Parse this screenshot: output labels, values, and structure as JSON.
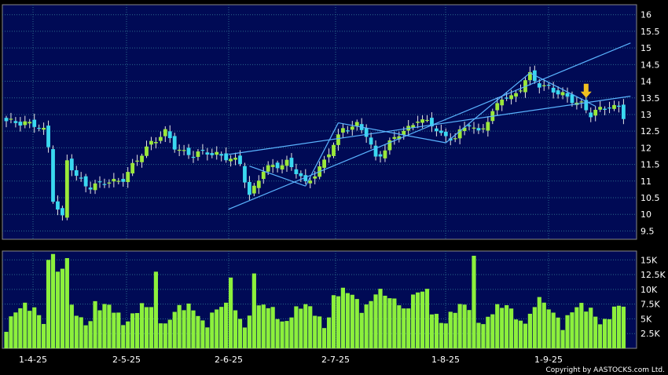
{
  "chart_data": [
    {
      "type": "candlestick",
      "title": "",
      "xlabel": "",
      "ylabel": "",
      "ylim": [
        9.25,
        16.3
      ],
      "grid": true,
      "x_ticks": [
        "1-4-25",
        "2-5-25",
        "2-6-25",
        "2-7-25",
        "1-8-25",
        "1-9-25"
      ],
      "y_ticks": [
        "9.5",
        "10",
        "10.5",
        "11",
        "11.5",
        "12",
        "12.5",
        "13",
        "13.5",
        "14",
        "14.5",
        "15",
        "15.5",
        "16"
      ],
      "colors": {
        "up": "#9be83a",
        "down": "#3ad8f0",
        "line": "#5ab4ff",
        "grid": "#2a6a8a",
        "background": "#000a55",
        "arrow": "#f0c020"
      },
      "markers": [
        {
          "type": "arrow-down",
          "index": 124
        }
      ]
    },
    {
      "type": "bar",
      "title": "",
      "y_ticks": [
        "2.5K",
        "5K",
        "7.5K",
        "10K",
        "12.5K",
        "15K"
      ],
      "ylim": [
        0,
        16500
      ],
      "colors": {
        "bar": "#8cf03c"
      }
    }
  ],
  "footer": {
    "copyright": "Copyright by AASTOCKS.com Ltd."
  }
}
